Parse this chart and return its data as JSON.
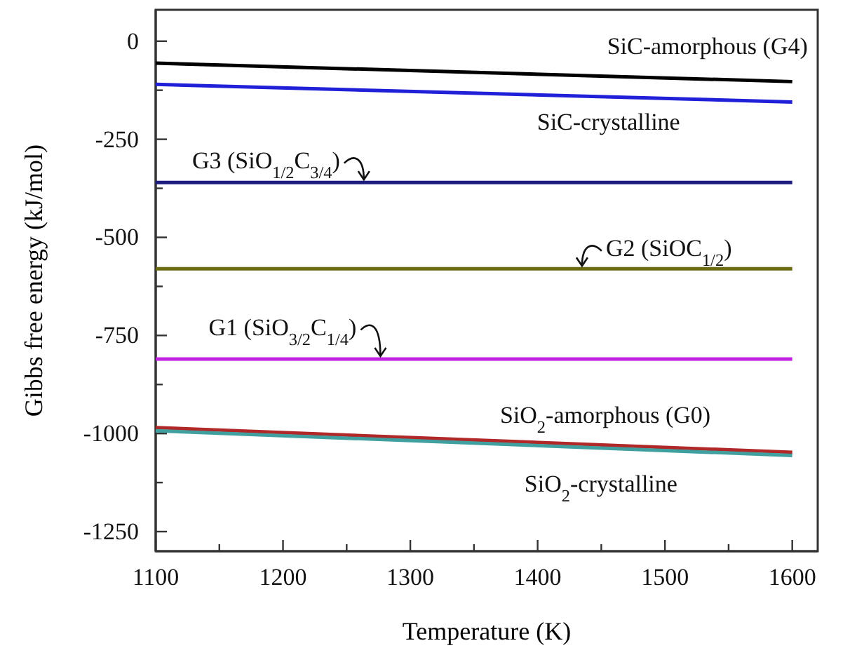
{
  "chart_data": {
    "type": "line",
    "xlabel": "Temperature (K)",
    "ylabel": "Gibbs  free energy (kJ/mol)",
    "x": [
      1100,
      1600
    ],
    "series": [
      {
        "name": "SiC-amorphous (G4)",
        "color": "#000000",
        "values": [
          -56,
          -103
        ]
      },
      {
        "name": "SiC-crystalline",
        "color": "#2020d8",
        "values": [
          -110,
          -155
        ]
      },
      {
        "name": "G3 (SiO$_{1/2}$C$_{3/4}$)",
        "color": "#1c1c80",
        "values": [
          -360,
          -360
        ]
      },
      {
        "name": "G2 (SiOC$_{1/2}$)",
        "color": "#6b6b12",
        "values": [
          -580,
          -580
        ]
      },
      {
        "name": "G1 (SiO$_{3/2}$C$_{1/4}$)",
        "color": "#c020e0",
        "values": [
          -810,
          -810
        ]
      },
      {
        "name": "SiO$_{2}$-amorphous (G0)",
        "color": "#b02828",
        "values": [
          -985,
          -1048
        ]
      },
      {
        "name": "SiO$_{2}$-crystalline",
        "color": "#40a0a0",
        "values": [
          -993,
          -1056
        ]
      }
    ],
    "xlim": [
      1100,
      1620
    ],
    "ylim": [
      -1300,
      80
    ],
    "xticks": [
      1100,
      {
        "value": 1150,
        "label": null
      },
      1200,
      {
        "value": 1250,
        "label": null
      },
      1300,
      {
        "value": 1350,
        "label": null
      },
      1400,
      {
        "value": 1450,
        "label": null
      },
      1500,
      {
        "value": 1550,
        "label": null
      },
      1600
    ],
    "yticks": [
      {
        "value": -1250,
        "label": "-1250"
      },
      {
        "value": -1125,
        "label": null
      },
      {
        "value": -1000,
        "label": "-1000"
      },
      {
        "value": -875,
        "label": null
      },
      {
        "value": -750,
        "label": "-750"
      },
      {
        "value": -625,
        "label": null
      },
      {
        "value": -500,
        "label": "-500"
      },
      {
        "value": -375,
        "label": null
      },
      {
        "value": -250,
        "label": "-250"
      },
      {
        "value": -125,
        "label": null
      },
      0
    ],
    "grid": false,
    "marker": "none",
    "line_style": "solid"
  }
}
